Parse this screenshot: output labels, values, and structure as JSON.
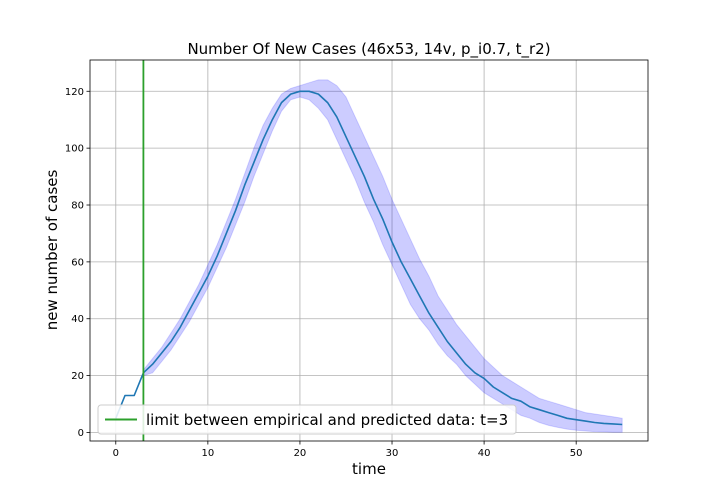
{
  "chart_data": {
    "type": "line",
    "title": "Number Of New Cases (46x53, 14v, p_i0.7, t_r2)",
    "xlabel": "time",
    "ylabel": "new number of cases",
    "xlim": [
      -2.8,
      57.8
    ],
    "ylim": [
      -3,
      131
    ],
    "xticks": [
      0,
      10,
      20,
      30,
      40,
      50
    ],
    "yticks": [
      0,
      20,
      40,
      60,
      80,
      100,
      120
    ],
    "grid": true,
    "legend_position": "lower-left",
    "series": [
      {
        "kind": "mean",
        "color": "#1f77b4",
        "x": [
          0,
          1,
          2,
          3,
          4,
          5,
          6,
          7,
          8,
          9,
          10,
          11,
          12,
          13,
          14,
          15,
          16,
          17,
          18,
          19,
          20,
          21,
          22,
          23,
          24,
          25,
          26,
          27,
          28,
          29,
          30,
          31,
          32,
          33,
          34,
          35,
          36,
          37,
          38,
          39,
          40,
          41,
          42,
          43,
          44,
          45,
          46,
          47,
          48,
          49,
          50,
          51,
          52,
          53,
          54,
          55
        ],
        "y": [
          5,
          13,
          13,
          21,
          24,
          28,
          32,
          37,
          43,
          49,
          55,
          62,
          70,
          78,
          87,
          95,
          103,
          110,
          116,
          119,
          120,
          120,
          119,
          116,
          111,
          104,
          97,
          90,
          82,
          75,
          67,
          60,
          54,
          48,
          42,
          37,
          32,
          28,
          24,
          21,
          19,
          16,
          14,
          12,
          11,
          9,
          8,
          7,
          6,
          5,
          4.5,
          4,
          3.5,
          3.2,
          3,
          2.8
        ]
      }
    ],
    "band": {
      "color": "#0000ff",
      "opacity": 0.2,
      "x": [
        3,
        4,
        5,
        6,
        7,
        8,
        9,
        10,
        11,
        12,
        13,
        14,
        15,
        16,
        17,
        18,
        19,
        20,
        21,
        22,
        23,
        24,
        25,
        26,
        27,
        28,
        29,
        30,
        31,
        32,
        33,
        34,
        35,
        36,
        37,
        38,
        39,
        40,
        41,
        42,
        43,
        44,
        45,
        46,
        47,
        48,
        49,
        50,
        51,
        52,
        53,
        54,
        55
      ],
      "lower": [
        20,
        21,
        25,
        29,
        34,
        39,
        45,
        51,
        58,
        65,
        73,
        81,
        90,
        98,
        106,
        113,
        117,
        118,
        117,
        114,
        110,
        103,
        96,
        89,
        81,
        74,
        66,
        59,
        52,
        45,
        40,
        36,
        31,
        27,
        24,
        20,
        17,
        14,
        12,
        10,
        8,
        6,
        5,
        3.5,
        2.5,
        1.8,
        1.2,
        0.8,
        0.5,
        0.3,
        0.2,
        0.1,
        0.1
      ],
      "upper": [
        22,
        26,
        30,
        35,
        40,
        46,
        52,
        59,
        66,
        74,
        82,
        91,
        100,
        108,
        114,
        119,
        121,
        122,
        123,
        124,
        124,
        122,
        118,
        111,
        104,
        97,
        90,
        82,
        75,
        68,
        61,
        55,
        48,
        43,
        38,
        34,
        30,
        26,
        23,
        20,
        18,
        16,
        14,
        12,
        11,
        10,
        9,
        8,
        7,
        6.5,
        6,
        5.5,
        5
      ]
    },
    "vline": {
      "x": 3,
      "color": "#2ca02c",
      "label": "limit between empirical and predicted data: t=3"
    }
  }
}
